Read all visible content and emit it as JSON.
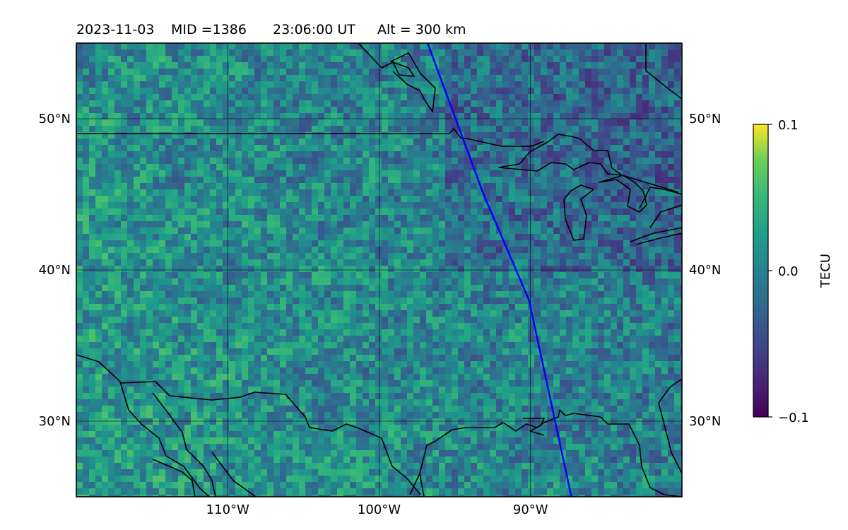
{
  "title": {
    "date": "2023-11-03",
    "mid": "MID =1386",
    "time": "23:06:00  UT",
    "alt": "Alt = 300 km"
  },
  "map": {
    "lon_range": [
      -120,
      -80
    ],
    "lat_range": [
      25,
      55
    ],
    "lat_ticks": [
      {
        "value": 50,
        "label": "50°N"
      },
      {
        "value": 40,
        "label": "40°N"
      },
      {
        "value": 30,
        "label": "30°N"
      }
    ],
    "lon_ticks": [
      {
        "value": -110,
        "label": "110°W"
      },
      {
        "value": -100,
        "label": "100°W"
      },
      {
        "value": -90,
        "label": "90°W"
      }
    ],
    "track_color": "#0000ff",
    "track": [
      [
        -96.8,
        55
      ],
      [
        -93.1,
        45
      ],
      [
        -90.1,
        38
      ],
      [
        -87.3,
        25
      ]
    ]
  },
  "colorbar": {
    "label": "TECU",
    "colormap": "viridis",
    "ticks": [
      {
        "value": 0.1,
        "label": "0.1"
      },
      {
        "value": 0.0,
        "label": "0.0"
      },
      {
        "value": -0.1,
        "label": "−0.1"
      }
    ],
    "range": [
      -0.1,
      0.1
    ]
  }
}
